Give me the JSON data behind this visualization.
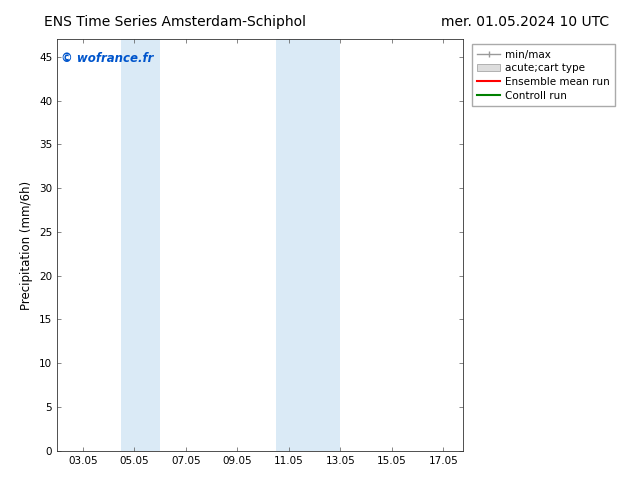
{
  "title_left": "ENS Time Series Amsterdam-Schiphol",
  "title_right": "mer. 01.05.2024 10 UTC",
  "ylabel": "Precipitation (mm/6h)",
  "ylim": [
    0,
    47
  ],
  "yticks": [
    0,
    5,
    10,
    15,
    20,
    25,
    30,
    35,
    40,
    45
  ],
  "xlim": [
    2.0,
    17.75
  ],
  "xtick_labels": [
    "03.05",
    "05.05",
    "07.05",
    "09.05",
    "11.05",
    "13.05",
    "15.05",
    "17.05"
  ],
  "xtick_positions": [
    3,
    5,
    7,
    9,
    11,
    13,
    15,
    17
  ],
  "shaded_bands": [
    {
      "xmin": 4.5,
      "xmax": 5.0,
      "color": "#daeaf6"
    },
    {
      "xmin": 5.0,
      "xmax": 6.0,
      "color": "#daeaf6"
    },
    {
      "xmin": 10.5,
      "xmax": 11.0,
      "color": "#daeaf6"
    },
    {
      "xmin": 11.0,
      "xmax": 13.0,
      "color": "#daeaf6"
    }
  ],
  "watermark_text": "© wofrance.fr",
  "watermark_color": "#0055cc",
  "bg_color": "#ffffff",
  "title_fontsize": 10,
  "tick_fontsize": 7.5,
  "ylabel_fontsize": 8.5,
  "legend_fontsize": 7.5
}
